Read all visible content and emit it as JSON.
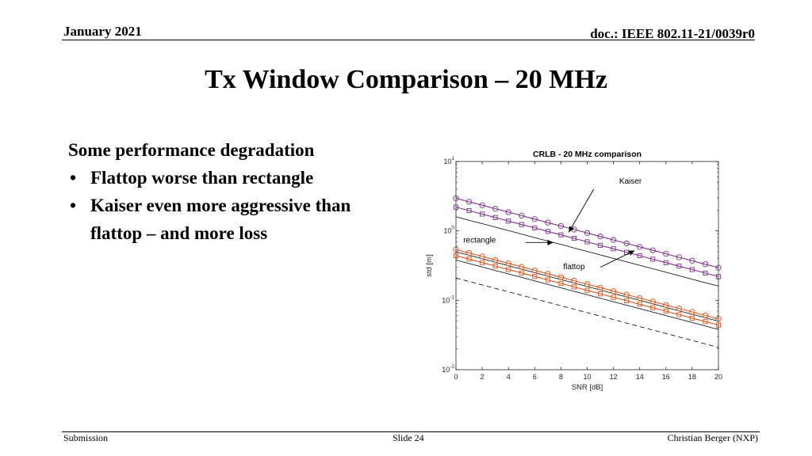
{
  "header": {
    "date": "January 2021",
    "doc": "doc.: IEEE 802.11-21/0039r0"
  },
  "title": "Tx Window Comparison – 20 MHz",
  "body": {
    "intro": "Some performance degradation",
    "bullets": [
      "Flattop worse than rectangle",
      "Kaiser even more aggressive than flattop – and more loss"
    ]
  },
  "footer": {
    "left": "Submission",
    "center": "Slide 24",
    "right": "Christian Berger (NXP)"
  },
  "chart_data": {
    "type": "line",
    "title": "CRLB - 20 MHz comparison",
    "xlabel": "SNR [dB]",
    "ylabel": "std [m]",
    "xlim": [
      0,
      20
    ],
    "ylim": [
      0.01,
      10
    ],
    "yscale": "log",
    "xticks": [
      0,
      2,
      4,
      6,
      8,
      10,
      12,
      14,
      16,
      18,
      20
    ],
    "yticks": [
      {
        "value": 10,
        "base": "10",
        "exp": "1"
      },
      {
        "value": 1,
        "base": "10",
        "exp": "0"
      },
      {
        "value": 0.1,
        "base": "10",
        "exp": "-1"
      },
      {
        "value": 0.01,
        "base": "10",
        "exp": "-2"
      }
    ],
    "grid": false,
    "colors": {
      "purple": "#7E2F8E",
      "orange": "#D95319",
      "line": "#000000"
    },
    "x": [
      0,
      1,
      2,
      3,
      4,
      5,
      6,
      7,
      8,
      9,
      10,
      11,
      12,
      13,
      14,
      15,
      16,
      17,
      18,
      19,
      20
    ],
    "series": [
      {
        "key": "kaiser_circle",
        "marker": "circle",
        "color": "#7E2F8E",
        "y0": 2.95,
        "y20": 0.295
      },
      {
        "key": "kaiser_square",
        "marker": "square",
        "color": "#7E2F8E",
        "y0": 2.2,
        "y20": 0.22
      },
      {
        "key": "flattop_line",
        "marker": "none",
        "color": "#000000",
        "y0": 1.6,
        "y20": 0.16
      },
      {
        "key": "orange_circle",
        "marker": "circle",
        "color": "#D95319",
        "y0": 0.54,
        "y20": 0.054
      },
      {
        "key": "orange_square",
        "marker": "square",
        "color": "#D95319",
        "y0": 0.44,
        "y20": 0.044
      },
      {
        "key": "rect_line_upper",
        "marker": "none",
        "color": "#000000",
        "y0": 0.5,
        "y20": 0.05
      },
      {
        "key": "rect_line_lower",
        "marker": "none",
        "color": "#000000",
        "y0": 0.38,
        "y20": 0.038
      },
      {
        "key": "bound_dashed",
        "marker": "none",
        "color": "#000000",
        "dashed": true,
        "y0": 0.21,
        "y20": 0.021
      }
    ],
    "annotations": [
      {
        "text": "Kaiser",
        "tx": 13.3,
        "ty": 4.8,
        "ax": 10.5,
        "ay": 4.0,
        "hx": 8.6,
        "hy": 0.96
      },
      {
        "text": "rectangle",
        "tx": 1.8,
        "ty": 0.68,
        "ax": 5.3,
        "ay": 0.68,
        "hx": 7.4,
        "hy": 0.68
      },
      {
        "text": "flattop",
        "tx": 9.0,
        "ty": 0.28,
        "ax": 11.0,
        "ay": 0.3,
        "hx": 13.6,
        "hy": 0.52
      }
    ]
  }
}
